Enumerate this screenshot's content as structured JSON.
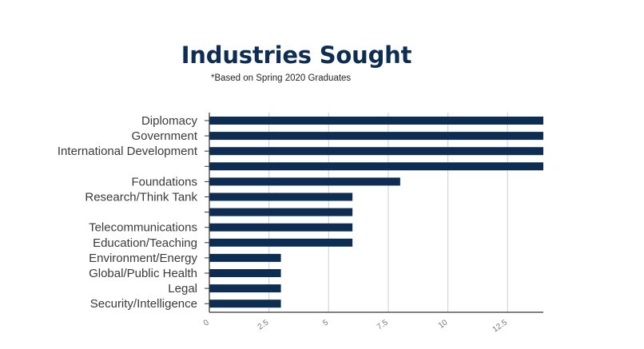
{
  "chart_data": {
    "type": "bar",
    "orientation": "horizontal",
    "title": "Industries Sought",
    "subtitle": "*Based on Spring 2020 Graduates",
    "categories": [
      "Diplomacy",
      "Government",
      "International Development",
      "",
      "Foundations",
      "Research/Think Tank",
      "",
      "Telecommunications",
      "Education/Teaching",
      "Environment/Energy",
      "Global/Public Health",
      "Legal",
      "Security/Intelligence"
    ],
    "values": [
      14,
      14,
      14,
      14,
      8,
      6,
      6,
      6,
      6,
      3,
      3,
      3,
      3
    ],
    "xlim": [
      0,
      14
    ],
    "xticks": [
      "0",
      "2.5",
      "5",
      "7.5",
      "10",
      "12.5"
    ],
    "grid": "vertical",
    "bar_color": "#0d2e52"
  }
}
